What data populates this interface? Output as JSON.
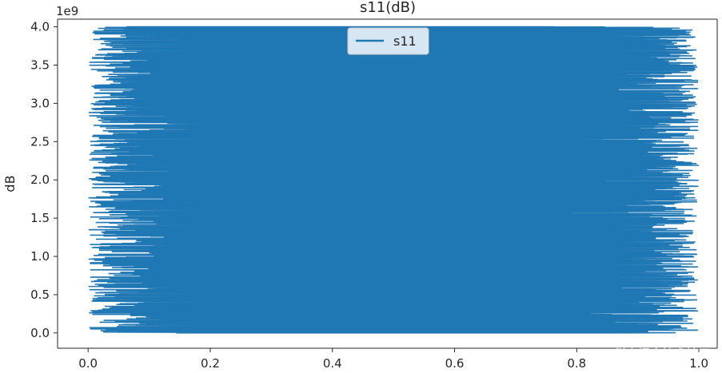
{
  "chart_data": {
    "type": "line",
    "title": "s11(dB)",
    "xlabel": "",
    "ylabel": "dB",
    "y_offset_label": "1e9",
    "xlim": [
      -0.05,
      1.03
    ],
    "ylim": [
      -200000000.0,
      4100000000.0
    ],
    "x_ticks": [
      0.0,
      0.2,
      0.4,
      0.6,
      0.8,
      1.0
    ],
    "x_tick_labels": [
      "0.0",
      "0.2",
      "0.4",
      "0.6",
      "0.8",
      "1.0"
    ],
    "y_ticks": [
      0,
      500000000,
      1000000000,
      1500000000,
      2000000000,
      2500000000,
      3000000000,
      3500000000,
      4000000000
    ],
    "y_tick_labels": [
      "0.0",
      "0.5",
      "1.0",
      "1.5",
      "2.0",
      "2.5",
      "3.0",
      "3.5",
      "4.0"
    ],
    "grid": false,
    "legend_position": "top-center",
    "series": [
      {
        "name": "s11",
        "color": "#1f77b4",
        "y_range": [
          0,
          4000000000
        ],
        "x_range": [
          0.0,
          1.0
        ],
        "description_shape": "dense horizontal line segments spanning x approx 0.0–1.0 across y 0–4e9"
      }
    ]
  },
  "watermark": "@稀土掘金技术社区"
}
